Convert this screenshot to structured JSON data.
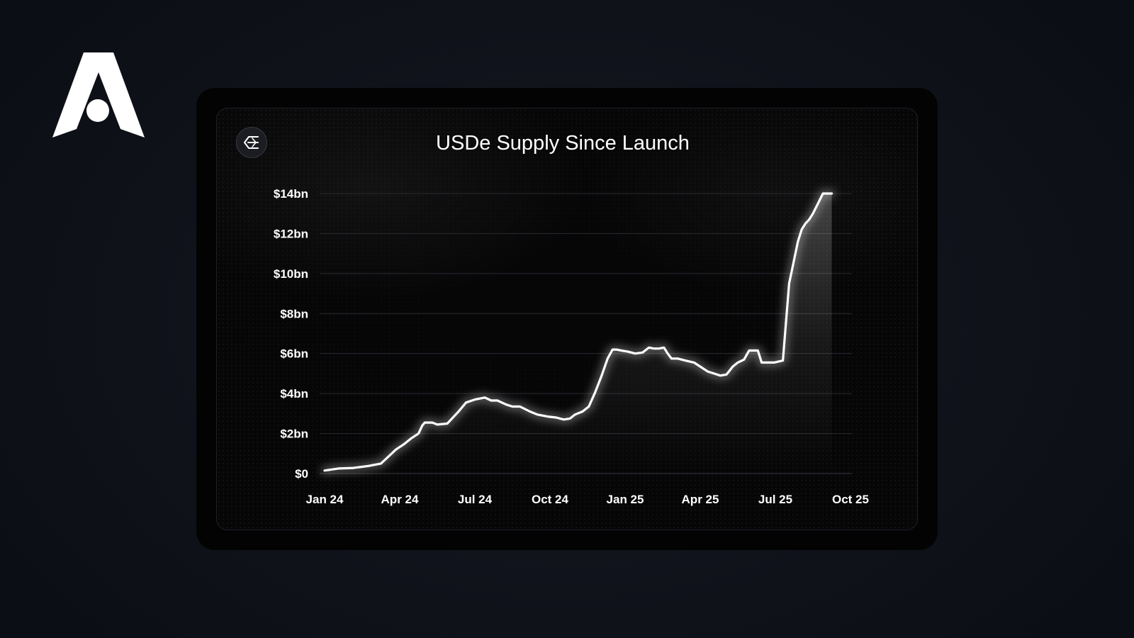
{
  "brand": {
    "logo_icon": "arrow-a-logo-icon",
    "color": "#ffffff"
  },
  "badge": {
    "icon": "ethena-sigma-icon"
  },
  "chart_data": {
    "type": "line",
    "title": "USDe Supply Since Launch",
    "xlabel": "",
    "ylabel": "",
    "ylim": [
      0,
      14
    ],
    "y_unit": "$bn",
    "yticks": [
      {
        "value": 0,
        "label": "$0"
      },
      {
        "value": 2,
        "label": "$2bn"
      },
      {
        "value": 4,
        "label": "$4bn"
      },
      {
        "value": 6,
        "label": "$6bn"
      },
      {
        "value": 8,
        "label": "$8bn"
      },
      {
        "value": 10,
        "label": "$10bn"
      },
      {
        "value": 12,
        "label": "$12bn"
      },
      {
        "value": 14,
        "label": "$14bn"
      }
    ],
    "xlim": [
      0,
      21
    ],
    "x_unit": "months since Jan 2024",
    "xticks": [
      {
        "value": 0,
        "label": "Jan 24"
      },
      {
        "value": 3,
        "label": "Apr 24"
      },
      {
        "value": 6,
        "label": "Jul 24"
      },
      {
        "value": 9,
        "label": "Oct 24"
      },
      {
        "value": 12,
        "label": "Jan 25"
      },
      {
        "value": 15,
        "label": "Apr 25"
      },
      {
        "value": 18,
        "label": "Jul 25"
      },
      {
        "value": 21,
        "label": "Oct 25"
      }
    ],
    "grid": true,
    "legend": "none",
    "line_color": "#ffffff",
    "series": [
      {
        "name": "USDe Supply",
        "x": [
          0.0,
          0.55,
          1.15,
          1.75,
          2.25,
          2.55,
          2.85,
          3.15,
          3.45,
          3.75,
          3.9,
          4.0,
          4.3,
          4.5,
          4.9,
          5.05,
          5.35,
          5.65,
          6.0,
          6.4,
          6.65,
          6.9,
          7.25,
          7.5,
          7.8,
          8.2,
          8.5,
          8.9,
          9.25,
          9.55,
          9.8,
          10.0,
          10.3,
          10.55,
          10.8,
          11.05,
          11.3,
          11.5,
          11.65,
          11.85,
          12.1,
          12.4,
          12.7,
          12.95,
          13.15,
          13.35,
          13.55,
          13.7,
          13.85,
          14.1,
          14.4,
          14.75,
          15.0,
          15.3,
          15.55,
          15.8,
          16.05,
          16.3,
          16.5,
          16.75,
          16.95,
          17.1,
          17.3,
          17.45,
          17.6,
          17.85,
          17.95,
          18.3,
          18.55,
          18.75,
          18.9,
          19.05,
          19.2,
          19.35,
          19.5,
          19.7,
          19.9,
          20.05,
          20.25
        ],
        "values": [
          0.15,
          0.25,
          0.28,
          0.38,
          0.5,
          0.85,
          1.2,
          1.45,
          1.75,
          2.0,
          2.4,
          2.55,
          2.55,
          2.45,
          2.5,
          2.7,
          3.1,
          3.55,
          3.7,
          3.8,
          3.65,
          3.65,
          3.45,
          3.35,
          3.35,
          3.1,
          2.95,
          2.85,
          2.8,
          2.7,
          2.75,
          2.95,
          3.1,
          3.35,
          4.05,
          4.85,
          5.75,
          6.2,
          6.2,
          6.15,
          6.1,
          6.0,
          6.05,
          6.3,
          6.25,
          6.25,
          6.3,
          6.0,
          5.75,
          5.75,
          5.65,
          5.55,
          5.35,
          5.1,
          5.0,
          4.9,
          4.95,
          5.35,
          5.55,
          5.7,
          6.15,
          6.15,
          6.15,
          5.55,
          5.55,
          5.55,
          5.55,
          5.65,
          9.5,
          10.7,
          11.6,
          12.2,
          12.5,
          12.7,
          13.0,
          13.5,
          14.0,
          14.0,
          14.0
        ]
      }
    ]
  }
}
